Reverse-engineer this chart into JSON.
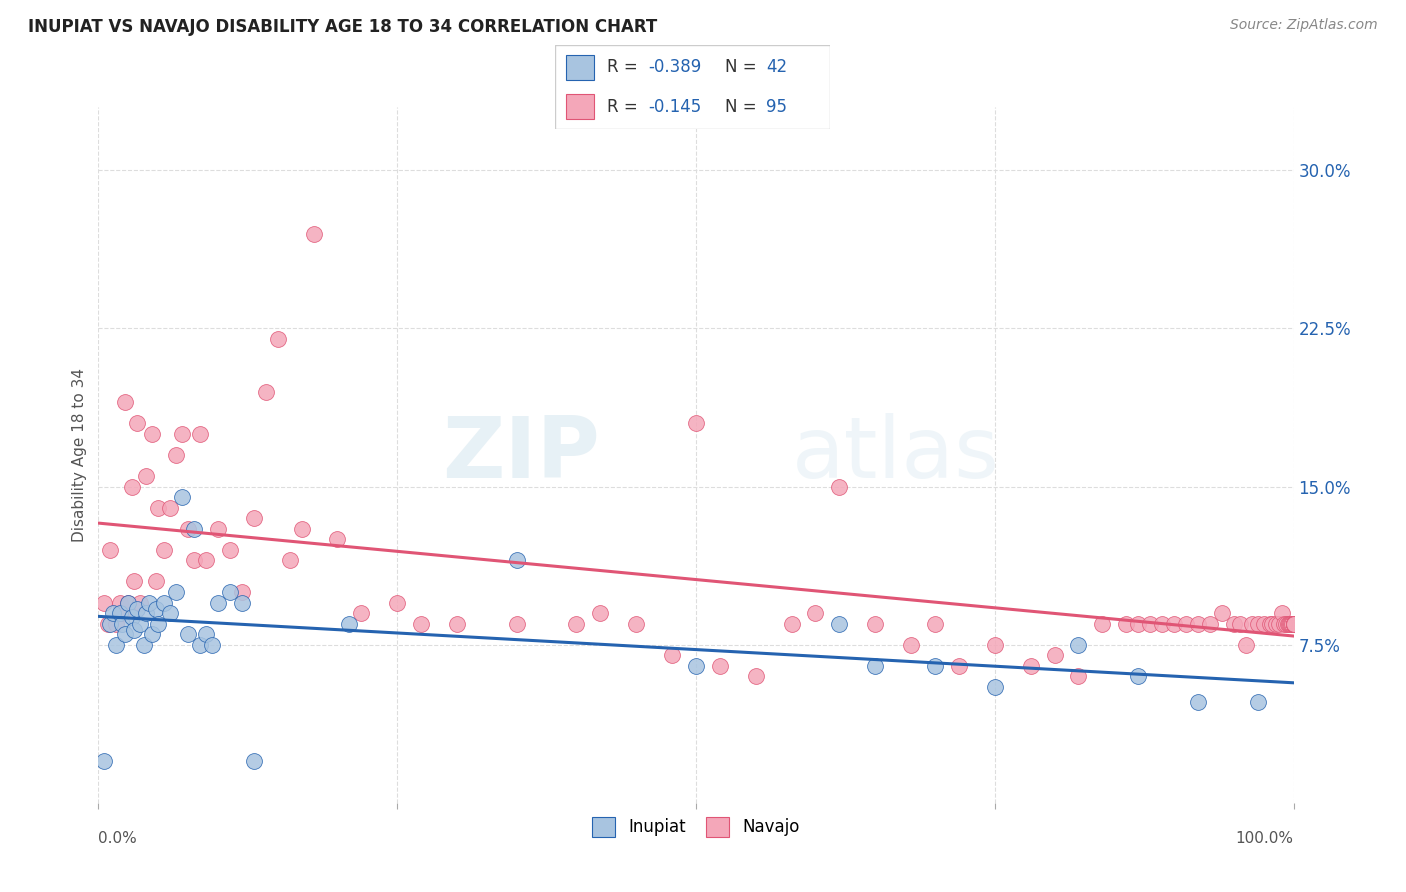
{
  "title": "INUPIAT VS NAVAJO DISABILITY AGE 18 TO 34 CORRELATION CHART",
  "source": "Source: ZipAtlas.com",
  "ylabel": "Disability Age 18 to 34",
  "ytick_labels": [
    "7.5%",
    "15.0%",
    "22.5%",
    "30.0%"
  ],
  "ytick_values": [
    0.075,
    0.15,
    0.225,
    0.3
  ],
  "xlim": [
    0.0,
    1.0
  ],
  "ylim": [
    0.0,
    0.33
  ],
  "inupiat_color": "#a8c4e0",
  "navajo_color": "#f4a7b9",
  "inupiat_line_color": "#2563b0",
  "navajo_line_color": "#e05575",
  "inupiat_R": -0.389,
  "inupiat_N": 42,
  "navajo_R": -0.145,
  "navajo_N": 95,
  "legend_label_inupiat": "Inupiat",
  "legend_label_navajo": "Navajo",
  "watermark_zip": "ZIP",
  "watermark_atlas": "atlas",
  "background_color": "#ffffff",
  "grid_color": "#dddddd",
  "inupiat_x": [
    0.005,
    0.01,
    0.012,
    0.015,
    0.018,
    0.02,
    0.022,
    0.025,
    0.028,
    0.03,
    0.032,
    0.035,
    0.038,
    0.04,
    0.042,
    0.045,
    0.048,
    0.05,
    0.055,
    0.06,
    0.065,
    0.07,
    0.075,
    0.08,
    0.085,
    0.09,
    0.095,
    0.1,
    0.11,
    0.12,
    0.13,
    0.21,
    0.35,
    0.5,
    0.62,
    0.65,
    0.7,
    0.75,
    0.82,
    0.87,
    0.92,
    0.97
  ],
  "inupiat_y": [
    0.02,
    0.085,
    0.09,
    0.075,
    0.09,
    0.085,
    0.08,
    0.095,
    0.088,
    0.082,
    0.092,
    0.085,
    0.075,
    0.09,
    0.095,
    0.08,
    0.092,
    0.085,
    0.095,
    0.09,
    0.1,
    0.145,
    0.08,
    0.13,
    0.075,
    0.08,
    0.075,
    0.095,
    0.1,
    0.095,
    0.02,
    0.085,
    0.115,
    0.065,
    0.085,
    0.065,
    0.065,
    0.055,
    0.075,
    0.06,
    0.048,
    0.048
  ],
  "navajo_x": [
    0.005,
    0.008,
    0.01,
    0.015,
    0.018,
    0.02,
    0.022,
    0.025,
    0.028,
    0.03,
    0.032,
    0.035,
    0.04,
    0.045,
    0.048,
    0.05,
    0.055,
    0.06,
    0.065,
    0.07,
    0.075,
    0.08,
    0.085,
    0.09,
    0.1,
    0.11,
    0.12,
    0.13,
    0.14,
    0.15,
    0.16,
    0.17,
    0.18,
    0.2,
    0.22,
    0.25,
    0.27,
    0.3,
    0.35,
    0.4,
    0.42,
    0.45,
    0.48,
    0.5,
    0.52,
    0.55,
    0.58,
    0.6,
    0.62,
    0.65,
    0.68,
    0.7,
    0.72,
    0.75,
    0.78,
    0.8,
    0.82,
    0.84,
    0.86,
    0.87,
    0.88,
    0.89,
    0.9,
    0.91,
    0.92,
    0.93,
    0.94,
    0.95,
    0.955,
    0.96,
    0.965,
    0.97,
    0.975,
    0.98,
    0.982,
    0.985,
    0.988,
    0.99,
    0.992,
    0.994,
    0.995,
    0.996,
    0.997,
    0.998,
    0.999,
    1.0,
    1.0,
    1.0,
    1.0,
    1.0,
    1.0,
    1.0,
    1.0,
    1.0,
    1.0
  ],
  "navajo_y": [
    0.095,
    0.085,
    0.12,
    0.085,
    0.095,
    0.09,
    0.19,
    0.095,
    0.15,
    0.105,
    0.18,
    0.095,
    0.155,
    0.175,
    0.105,
    0.14,
    0.12,
    0.14,
    0.165,
    0.175,
    0.13,
    0.115,
    0.175,
    0.115,
    0.13,
    0.12,
    0.1,
    0.135,
    0.195,
    0.22,
    0.115,
    0.13,
    0.27,
    0.125,
    0.09,
    0.095,
    0.085,
    0.085,
    0.085,
    0.085,
    0.09,
    0.085,
    0.07,
    0.18,
    0.065,
    0.06,
    0.085,
    0.09,
    0.15,
    0.085,
    0.075,
    0.085,
    0.065,
    0.075,
    0.065,
    0.07,
    0.06,
    0.085,
    0.085,
    0.085,
    0.085,
    0.085,
    0.085,
    0.085,
    0.085,
    0.085,
    0.09,
    0.085,
    0.085,
    0.075,
    0.085,
    0.085,
    0.085,
    0.085,
    0.085,
    0.085,
    0.085,
    0.09,
    0.085,
    0.085,
    0.085,
    0.085,
    0.085,
    0.085,
    0.085,
    0.085,
    0.085,
    0.085,
    0.085,
    0.085,
    0.085,
    0.085,
    0.085,
    0.085,
    0.085
  ]
}
